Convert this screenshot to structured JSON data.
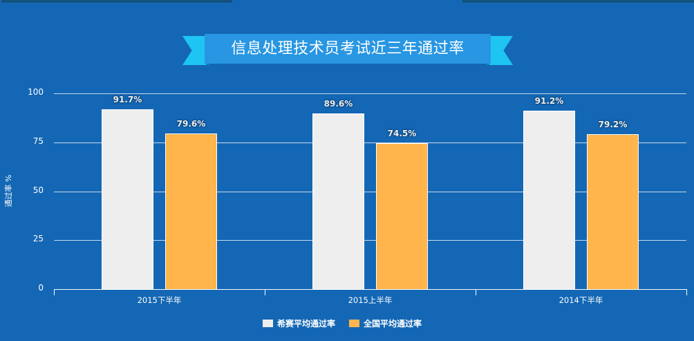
{
  "title": "信息处理技术员考试近三年通过率",
  "colors": {
    "background": "#1467b5",
    "ribbon_band": "#2896e2",
    "ribbon_tail": "#1ec4f2",
    "series_xisai": "#eeeeee",
    "series_national": "#ffb54c"
  },
  "chart_data": {
    "type": "bar",
    "title": "信息处理技术员考试近三年通过率",
    "xlabel": "",
    "ylabel": "通过率 %",
    "ylim": [
      0,
      100
    ],
    "yticks": [
      0,
      25,
      50,
      75,
      100
    ],
    "grid": true,
    "legend_position": "bottom",
    "categories": [
      "2015下半年",
      "2015上半年",
      "2014下半年"
    ],
    "series": [
      {
        "name": "希赛平均通过率",
        "values": [
          91.7,
          89.6,
          91.2
        ],
        "labels": [
          "91.7%",
          "89.6%",
          "91.2%"
        ],
        "color": "#eeeeee"
      },
      {
        "name": "全国平均通过率",
        "values": [
          79.6,
          74.5,
          79.2
        ],
        "labels": [
          "79.6%",
          "74.5%",
          "79.2%"
        ],
        "color": "#ffb54c"
      }
    ]
  }
}
